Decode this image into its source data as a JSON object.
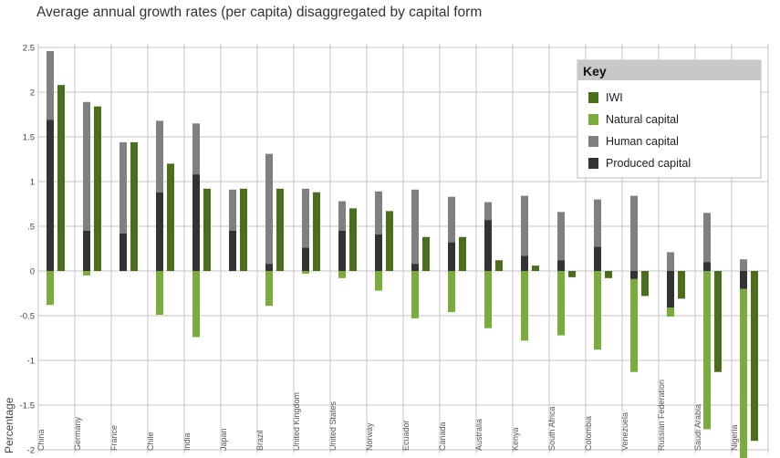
{
  "chart_data": {
    "type": "bar",
    "title": "Average annual growth rates (per capita) disaggregated by capital form",
    "ylabel": "Percentage",
    "xlabel": "",
    "ylim": [
      -2,
      2.5
    ],
    "yticks": [
      2.5,
      2,
      1.5,
      1,
      0.5,
      0,
      -0.5,
      -1,
      -1.5,
      -2
    ],
    "ytick_labels": [
      "2.5",
      "2",
      "1.5",
      "1",
      ".5",
      "0",
      "-0.5",
      "-1",
      "-1.5",
      "-2"
    ],
    "grid": true,
    "legend_position": "top-right",
    "legend_title": "Key",
    "categories": [
      "China",
      "Germany",
      "France",
      "Chile",
      "India",
      "Japan",
      "Brazil",
      "United Kingdom",
      "United States",
      "Norway",
      "Ecuador",
      "Canada",
      "Australia",
      "Kenya",
      "South Africa",
      "Colombia",
      "Venezuela",
      "Russian Federation",
      "Saudi Arabia",
      "Nigeria"
    ],
    "series": [
      {
        "name": "IWI",
        "color": "#4a6e1a",
        "values": [
          2.08,
          1.84,
          1.44,
          1.2,
          0.92,
          0.92,
          0.92,
          0.88,
          0.7,
          0.67,
          0.38,
          0.38,
          0.12,
          0.06,
          -0.07,
          -0.08,
          -0.28,
          -0.31,
          -1.13,
          -1.9
        ]
      },
      {
        "name": "Natural capital",
        "color": "#7aac3c",
        "values": [
          -0.38,
          -0.05,
          0,
          -0.49,
          -0.74,
          0,
          -0.39,
          -0.03,
          -0.08,
          -0.22,
          -0.53,
          -0.46,
          -0.64,
          -0.78,
          -0.72,
          -0.88,
          -1.04,
          -0.1,
          -1.77,
          -1.98
        ]
      },
      {
        "name": "Human capital",
        "color": "#808080",
        "values": [
          0.77,
          1.44,
          1.02,
          0.8,
          0.57,
          0.46,
          1.23,
          0.66,
          0.33,
          0.48,
          0.83,
          0.51,
          0.2,
          0.67,
          0.54,
          0.53,
          0.84,
          0.21,
          0.55,
          0.13
        ]
      },
      {
        "name": "Produced capital",
        "color": "#333333",
        "values": [
          1.69,
          0.45,
          0.42,
          0.88,
          1.08,
          0.45,
          0.08,
          0.26,
          0.45,
          0.41,
          0.08,
          0.32,
          0.57,
          0.17,
          0.12,
          0.27,
          -0.09,
          -0.41,
          0.1,
          -0.2
        ]
      }
    ]
  }
}
